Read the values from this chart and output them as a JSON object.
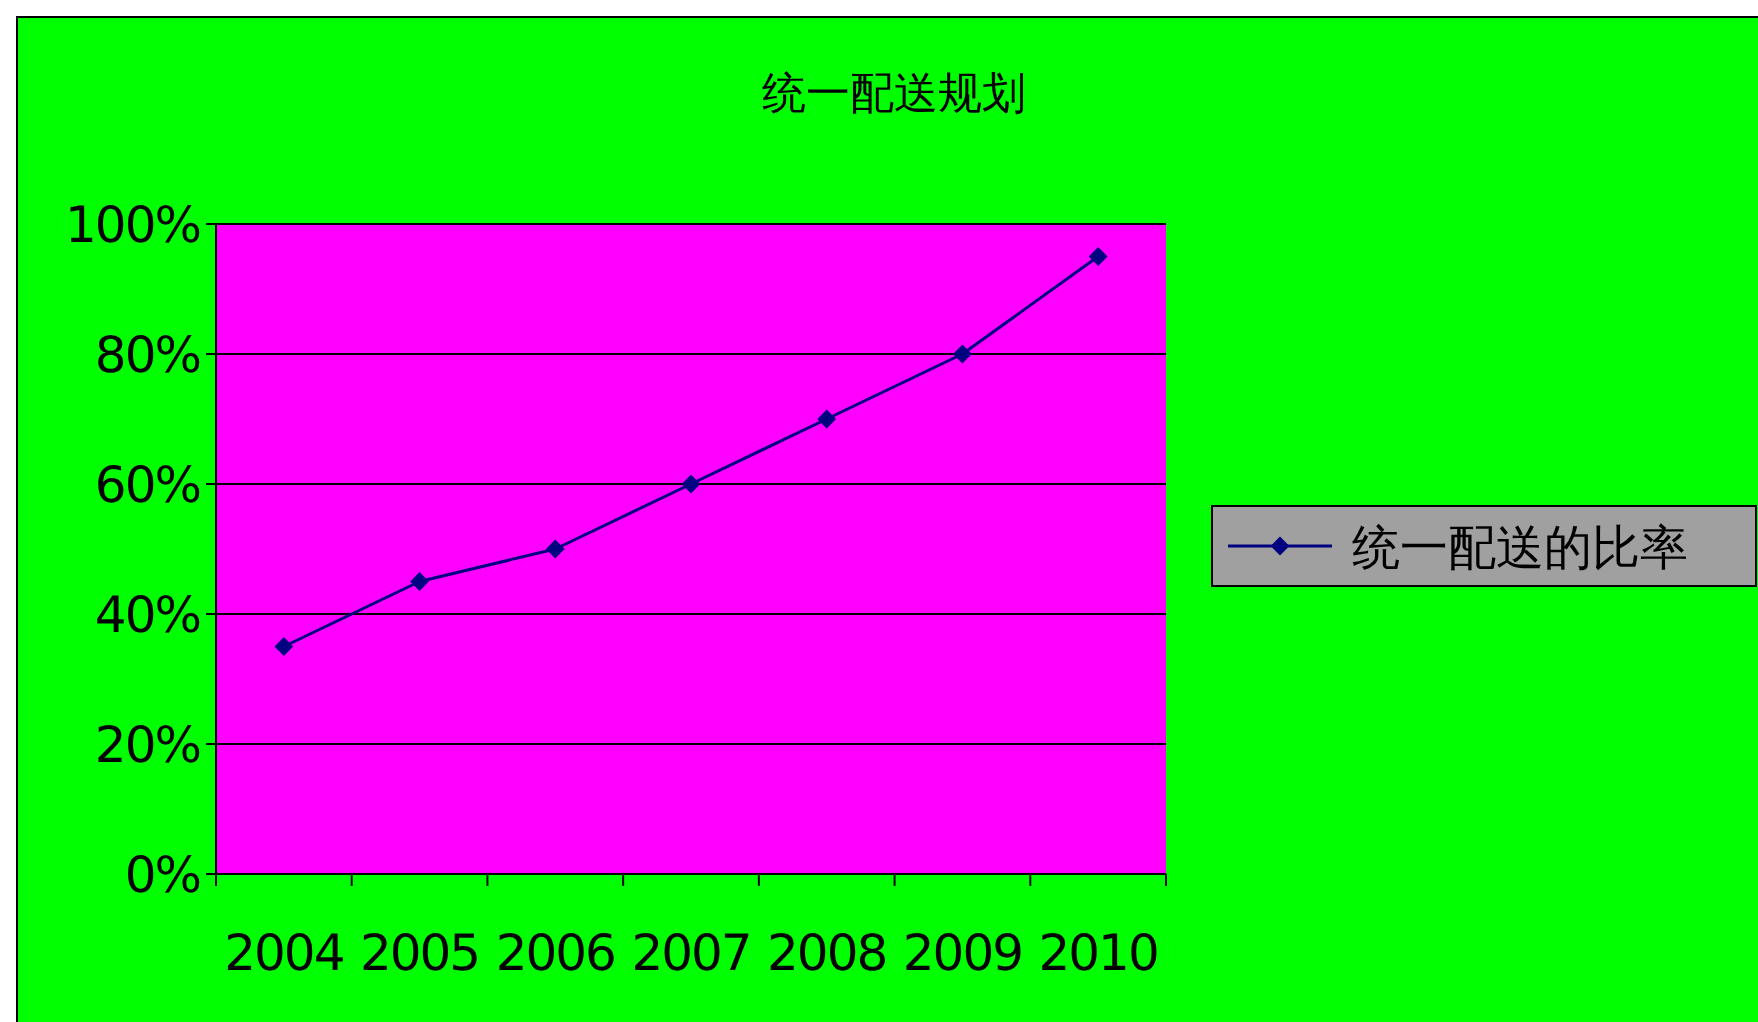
{
  "chart_data": {
    "type": "line",
    "title": "统一配送规划",
    "categories": [
      "2004",
      "2005",
      "2006",
      "2007",
      "2008",
      "2009",
      "2010"
    ],
    "series": [
      {
        "name": "统一配送的比率",
        "color": "#000080",
        "values": [
          35,
          45,
          50,
          60,
          70,
          80,
          95
        ]
      }
    ],
    "ylim": [
      0,
      100
    ],
    "yticks": [
      {
        "value": 0,
        "label": "0%"
      },
      {
        "value": 20,
        "label": "20%"
      },
      {
        "value": 40,
        "label": "40%"
      },
      {
        "value": 60,
        "label": "60%"
      },
      {
        "value": 80,
        "label": "80%"
      },
      {
        "value": 100,
        "label": "100%"
      }
    ],
    "grid": "y",
    "legend": "right",
    "marker": "diamond",
    "line_style": "solid"
  }
}
